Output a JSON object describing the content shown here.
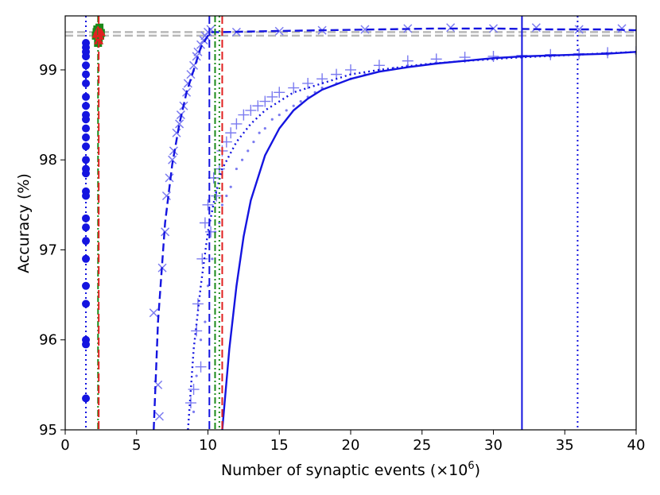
{
  "chart_data": {
    "type": "scatter",
    "xlabel_main": "Number of synaptic events (×10",
    "xlabel_exp": "6",
    "xlabel_tail": ")",
    "ylabel": "Accuracy (%)",
    "xlim": [
      0,
      40
    ],
    "ylim": [
      95,
      99.6
    ],
    "xticks": [
      "0",
      "5",
      "10",
      "15",
      "20",
      "25",
      "30",
      "35",
      "40"
    ],
    "yticks": [
      "95",
      "96",
      "97",
      "98",
      "99"
    ],
    "grid": false,
    "colors": {
      "blue": "#1414e0",
      "light_blue": "#7b7bf0",
      "green": "#1a8a1a",
      "red": "#e02020",
      "grey": "#b8b8b8"
    },
    "reference_lines": [
      {
        "y": 99.42,
        "style": "dashed",
        "color": "grey"
      },
      {
        "y": 99.38,
        "style": "dashed",
        "color": "grey"
      }
    ],
    "vertical_lines": [
      {
        "x": 1.45,
        "style": "dotted",
        "color": "blue"
      },
      {
        "x": 2.3,
        "style": "dashdot",
        "color": "green"
      },
      {
        "x": 2.35,
        "style": "dashed",
        "color": "red"
      },
      {
        "x": 10.1,
        "style": "dashed",
        "color": "blue"
      },
      {
        "x": 10.5,
        "style": "dashdot",
        "color": "green"
      },
      {
        "x": 10.8,
        "style": "dotted",
        "color": "green"
      },
      {
        "x": 11.0,
        "style": "dashed",
        "color": "red"
      },
      {
        "x": 32.0,
        "style": "solid",
        "color": "blue"
      },
      {
        "x": 35.9,
        "style": "dotted",
        "color": "blue"
      }
    ],
    "series": [
      {
        "marker": "circle",
        "color": "blue",
        "x": [
          1.45,
          1.45,
          1.45,
          1.45,
          1.45,
          1.45,
          1.45,
          1.45,
          1.45,
          1.45,
          1.45,
          1.45,
          1.45,
          1.45,
          1.45,
          1.45,
          1.45,
          1.45,
          1.45,
          1.45,
          1.45,
          1.45,
          1.45,
          1.45,
          1.45,
          1.45,
          1.45,
          1.45
        ],
        "y": [
          99.3,
          99.25,
          99.2,
          99.15,
          99.05,
          98.95,
          98.85,
          98.7,
          98.6,
          98.5,
          98.45,
          98.35,
          98.25,
          98.15,
          98.0,
          97.9,
          97.85,
          97.65,
          97.6,
          97.35,
          97.25,
          97.1,
          96.9,
          96.6,
          96.4,
          96.0,
          95.95,
          95.35
        ]
      },
      {
        "marker": "square",
        "color": "green",
        "x": [
          2.15,
          2.2,
          2.25,
          2.3,
          2.35,
          2.4,
          2.45,
          2.5,
          2.3,
          2.4
        ],
        "y": [
          99.38,
          99.42,
          99.45,
          99.4,
          99.35,
          99.43,
          99.38,
          99.41,
          99.3,
          99.47
        ]
      },
      {
        "marker": "triangle",
        "color": "red",
        "x": [
          2.2,
          2.3,
          2.4,
          2.5,
          2.35
        ],
        "y": [
          99.4,
          99.44,
          99.38,
          99.42,
          99.33
        ]
      },
      {
        "marker": "x",
        "color": "light_blue",
        "x": [
          6.2,
          6.5,
          6.6,
          6.8,
          7.0,
          7.1,
          7.3,
          7.5,
          7.6,
          7.8,
          8.0,
          8.1,
          8.3,
          8.5,
          8.6,
          8.8,
          9.0,
          9.2,
          9.3,
          9.5,
          9.7,
          9.8,
          10.0,
          10.2,
          12,
          15,
          18,
          21,
          24,
          27,
          30,
          33,
          36,
          39
        ],
        "y": [
          96.3,
          95.5,
          95.15,
          96.8,
          97.2,
          97.6,
          97.8,
          98.0,
          98.1,
          98.3,
          98.4,
          98.5,
          98.6,
          98.75,
          98.85,
          98.95,
          99.05,
          99.15,
          99.2,
          99.28,
          99.33,
          99.38,
          99.42,
          99.45,
          99.42,
          99.43,
          99.44,
          99.45,
          99.46,
          99.47,
          99.46,
          99.47,
          99.45,
          99.46
        ]
      },
      {
        "marker": "plus",
        "color": "light_blue",
        "x": [
          8.8,
          9.0,
          9.2,
          9.3,
          9.5,
          9.6,
          9.8,
          10.0,
          10.2,
          10.4,
          10.6,
          10.8,
          11.0,
          11.3,
          11.6,
          12.0,
          12.5,
          13.0,
          13.5,
          14.0,
          14.5,
          15.0,
          16.0,
          17.0,
          18.0,
          19.0,
          20.0,
          22.0,
          24.0,
          26.0,
          28.0,
          30.0,
          32.0,
          34.0,
          36.0,
          38.0,
          40.0
        ],
        "y": [
          95.3,
          95.45,
          96.1,
          96.4,
          95.7,
          96.9,
          97.3,
          97.5,
          97.2,
          97.8,
          97.6,
          97.9,
          98.1,
          98.2,
          98.3,
          98.4,
          98.5,
          98.55,
          98.6,
          98.65,
          98.7,
          98.75,
          98.8,
          98.85,
          98.9,
          98.95,
          99.0,
          99.05,
          99.1,
          99.12,
          99.14,
          99.15,
          99.16,
          99.17,
          99.18,
          99.19,
          99.2
        ]
      },
      {
        "marker": "dot",
        "color": "light_blue",
        "x": [
          9.0,
          9.2,
          9.5,
          9.8,
          10.0,
          10.3,
          10.5,
          10.8,
          11.0,
          11.3,
          11.6,
          12.0,
          12.4,
          12.8,
          13.2,
          13.6,
          14.0,
          14.5,
          15.0,
          15.5,
          16.0,
          16.5,
          17.0,
          17.5,
          18.0,
          19.0,
          20.0,
          21.0,
          22.0,
          23.0,
          24.0,
          26.0,
          28.0,
          30.0,
          32.0,
          34.0,
          36.0,
          38.0,
          40.0
        ],
        "y": [
          95.2,
          95.6,
          96.0,
          96.2,
          96.6,
          96.9,
          97.2,
          97.3,
          97.5,
          97.6,
          97.7,
          97.9,
          98.0,
          98.1,
          98.2,
          98.3,
          98.35,
          98.45,
          98.5,
          98.55,
          98.6,
          98.65,
          98.7,
          98.75,
          98.8,
          98.85,
          98.9,
          98.95,
          99.0,
          99.02,
          99.05,
          99.08,
          99.1,
          99.12,
          99.14,
          99.15,
          99.16,
          99.17,
          99.18
        ]
      }
    ],
    "curves": [
      {
        "style": "dashed",
        "color": "blue",
        "x": [
          6.2,
          6.5,
          7.0,
          7.5,
          8.0,
          8.5,
          9.0,
          9.5,
          10.0,
          10.3,
          11,
          14,
          18,
          22,
          26,
          30,
          34,
          38,
          40
        ],
        "y": [
          95.0,
          96.2,
          97.3,
          97.95,
          98.4,
          98.75,
          99.0,
          99.25,
          99.38,
          99.42,
          99.42,
          99.43,
          99.44,
          99.45,
          99.46,
          99.46,
          99.45,
          99.45,
          99.44
        ]
      },
      {
        "style": "dotted",
        "color": "blue",
        "x": [
          8.6,
          9.0,
          9.5,
          10.0,
          10.5,
          11.0,
          12.0,
          13.0,
          14.0,
          15.0,
          16.0,
          18.0,
          20.0,
          22.0,
          25.0,
          28.0,
          32.0,
          36.0,
          40.0
        ],
        "y": [
          95.0,
          95.9,
          96.6,
          97.2,
          97.6,
          97.9,
          98.2,
          98.4,
          98.55,
          98.65,
          98.75,
          98.85,
          98.95,
          99.0,
          99.06,
          99.1,
          99.14,
          99.17,
          99.2
        ]
      },
      {
        "style": "solid",
        "color": "blue",
        "x": [
          11.0,
          11.5,
          12.0,
          12.5,
          13.0,
          14.0,
          15.0,
          16.0,
          17.0,
          18.0,
          20.0,
          22.0,
          24.0,
          26.0,
          28.0,
          30.0,
          32.0,
          34.0,
          36.0,
          38.0,
          40.0
        ],
        "y": [
          95.0,
          95.9,
          96.6,
          97.15,
          97.55,
          98.05,
          98.35,
          98.55,
          98.68,
          98.78,
          98.9,
          98.98,
          99.03,
          99.07,
          99.1,
          99.13,
          99.15,
          99.16,
          99.17,
          99.18,
          99.2
        ]
      }
    ]
  }
}
